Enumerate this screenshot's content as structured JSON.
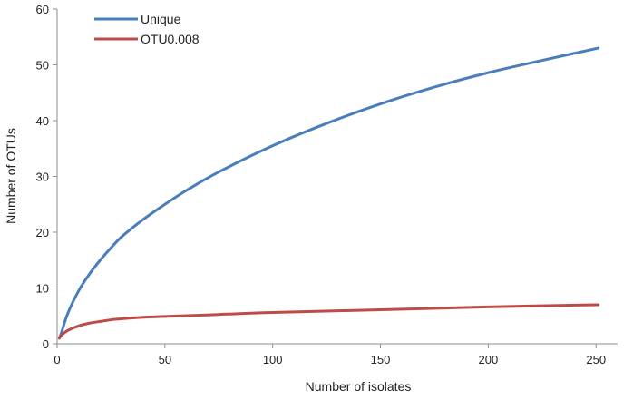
{
  "chart_data": {
    "type": "line",
    "title": "",
    "xlabel": "Number of isolates",
    "ylabel": "Number of OTUs",
    "xlim": [
      0,
      260
    ],
    "ylim": [
      0,
      60
    ],
    "xticks": [
      0,
      50,
      100,
      150,
      200,
      250
    ],
    "yticks": [
      0,
      10,
      20,
      30,
      40,
      50,
      60
    ],
    "grid": false,
    "legend_position": "top-left",
    "series": [
      {
        "name": "Unique",
        "color": "#4a7ebb",
        "x": [
          1,
          2,
          5,
          10,
          15,
          20,
          25,
          30,
          40,
          50,
          60,
          75,
          100,
          125,
          150,
          175,
          200,
          225,
          251
        ],
        "y": [
          1,
          2,
          5.5,
          9.5,
          12.5,
          15,
          17.2,
          19.2,
          22.3,
          25,
          27.5,
          30.8,
          35.5,
          39.5,
          43,
          46,
          48.6,
          50.8,
          53
        ]
      },
      {
        "name": "OTU0.008",
        "color": "#be4b48",
        "x": [
          1,
          2,
          5,
          10,
          15,
          20,
          25,
          30,
          40,
          50,
          75,
          100,
          150,
          200,
          251
        ],
        "y": [
          1,
          1.5,
          2.4,
          3.2,
          3.7,
          4.0,
          4.3,
          4.5,
          4.75,
          4.9,
          5.25,
          5.6,
          6.1,
          6.6,
          7
        ]
      }
    ]
  }
}
